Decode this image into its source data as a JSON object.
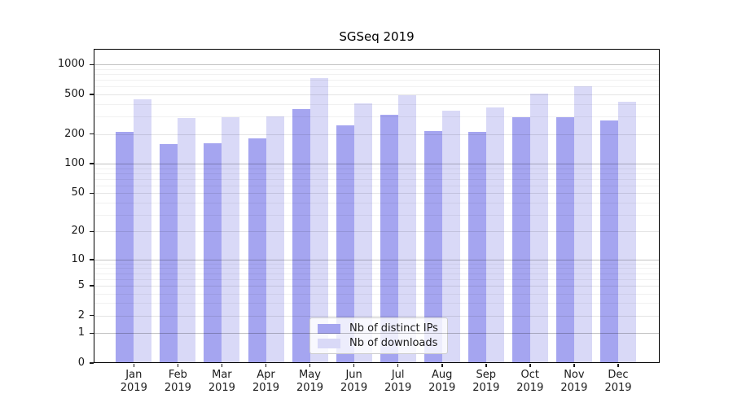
{
  "chart_data": {
    "type": "bar",
    "title": "SGSeq 2019",
    "year": "2019",
    "months": [
      "Jan",
      "Feb",
      "Mar",
      "Apr",
      "May",
      "Jun",
      "Jul",
      "Aug",
      "Sep",
      "Oct",
      "Nov",
      "Dec"
    ],
    "categories": [
      "Jan 2019",
      "Feb 2019",
      "Mar 2019",
      "Apr 2019",
      "May 2019",
      "Jun 2019",
      "Jul 2019",
      "Aug 2019",
      "Sep 2019",
      "Oct 2019",
      "Nov 2019",
      "Dec 2019"
    ],
    "series": [
      {
        "name": "Nb of distinct IPs",
        "key": "distinct-ips",
        "color": "#a5a5f0",
        "values": [
          212,
          159,
          160,
          181,
          357,
          244,
          312,
          214,
          210,
          293,
          295,
          275
        ]
      },
      {
        "name": "Nb of downloads",
        "key": "downloads",
        "color": "#d9d9f7",
        "values": [
          451,
          291,
          296,
          300,
          730,
          407,
          489,
          345,
          372,
          507,
          605,
          423
        ]
      }
    ],
    "yscale": "log10(v+1)",
    "ylim": [
      0,
      1440
    ],
    "yticks": [
      0,
      1,
      2,
      5,
      10,
      20,
      50,
      100,
      200,
      500,
      1000
    ],
    "decade_yticks": [
      1,
      10,
      100,
      1000
    ],
    "minor_yticks": [
      3,
      4,
      6,
      7,
      8,
      9,
      30,
      40,
      60,
      70,
      80,
      90,
      300,
      400,
      600,
      700,
      800,
      900
    ],
    "grid": "on",
    "legend_position": "lower-center",
    "xlabel": "",
    "ylabel": ""
  }
}
